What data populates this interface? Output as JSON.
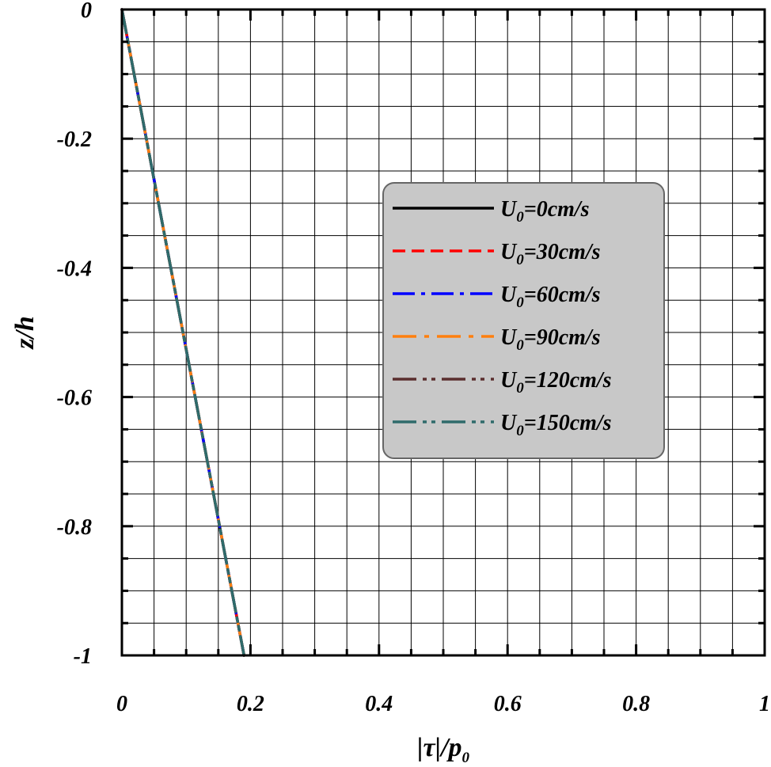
{
  "chart_data": {
    "type": "line",
    "xlabel_parts": {
      "main": "|τ|/p",
      "sub": "0"
    },
    "ylabel": "z/h",
    "xlim": [
      0,
      1
    ],
    "ylim": [
      -1,
      0
    ],
    "x_ticks": [
      "0",
      "0.2",
      "0.4",
      "0.6",
      "0.8",
      "1"
    ],
    "y_ticks": [
      "0",
      "-0.2",
      "-0.4",
      "-0.6",
      "-0.8",
      "-1"
    ],
    "grid": true,
    "legend_position": "center-right",
    "series": [
      {
        "name": "U0=0cm/s",
        "label_parts": {
          "main": "U",
          "sub": "0",
          "rest": "=0cm/s"
        },
        "color": "#000000",
        "dash": "solid",
        "points": [
          [
            0.0,
            0.0
          ],
          [
            0.038,
            -0.2
          ],
          [
            0.076,
            -0.4
          ],
          [
            0.114,
            -0.6
          ],
          [
            0.152,
            -0.8
          ],
          [
            0.19,
            -1.0
          ]
        ]
      },
      {
        "name": "U0=30cm/s",
        "label_parts": {
          "main": "U",
          "sub": "0",
          "rest": "=30cm/s"
        },
        "color": "#ff0000",
        "dash": "dashed",
        "points": [
          [
            0.0,
            0.0
          ],
          [
            0.038,
            -0.2
          ],
          [
            0.076,
            -0.4
          ],
          [
            0.114,
            -0.6
          ],
          [
            0.152,
            -0.8
          ],
          [
            0.19,
            -1.0
          ]
        ]
      },
      {
        "name": "U0=60cm/s",
        "label_parts": {
          "main": "U",
          "sub": "0",
          "rest": "=60cm/s"
        },
        "color": "#0000ff",
        "dash": "dash-dot",
        "points": [
          [
            0.0,
            0.0
          ],
          [
            0.038,
            -0.2
          ],
          [
            0.076,
            -0.4
          ],
          [
            0.114,
            -0.6
          ],
          [
            0.152,
            -0.8
          ],
          [
            0.19,
            -1.0
          ]
        ]
      },
      {
        "name": "U0=90cm/s",
        "label_parts": {
          "main": "U",
          "sub": "0",
          "rest": "=90cm/s"
        },
        "color": "#ff7f0e",
        "dash": "long-dash-dot",
        "points": [
          [
            0.0,
            0.0
          ],
          [
            0.038,
            -0.2
          ],
          [
            0.076,
            -0.4
          ],
          [
            0.114,
            -0.6
          ],
          [
            0.152,
            -0.8
          ],
          [
            0.19,
            -1.0
          ]
        ]
      },
      {
        "name": "U0=120cm/s",
        "label_parts": {
          "main": "U",
          "sub": "0",
          "rest": "=120cm/s"
        },
        "color": "#5a2e2e",
        "dash": "long-dash-dot-dot",
        "points": [
          [
            0.0,
            0.0
          ],
          [
            0.038,
            -0.2
          ],
          [
            0.076,
            -0.4
          ],
          [
            0.114,
            -0.6
          ],
          [
            0.152,
            -0.8
          ],
          [
            0.19,
            -1.0
          ]
        ]
      },
      {
        "name": "U0=150cm/s",
        "label_parts": {
          "main": "U",
          "sub": "0",
          "rest": "=150cm/s"
        },
        "color": "#2f6b6b",
        "dash": "long-dash-dot-dot",
        "points": [
          [
            0.0,
            0.0
          ],
          [
            0.038,
            -0.2
          ],
          [
            0.076,
            -0.4
          ],
          [
            0.114,
            -0.6
          ],
          [
            0.152,
            -0.8
          ],
          [
            0.19,
            -1.0
          ]
        ]
      }
    ],
    "legend_style": {
      "background": "#c8c8c8",
      "border": "#666666"
    }
  }
}
